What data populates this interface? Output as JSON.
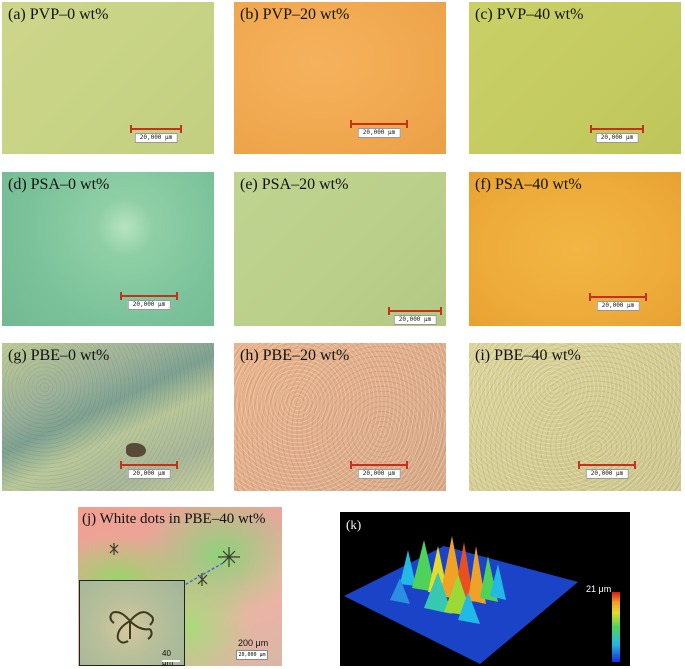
{
  "panels": [
    {
      "id": "a",
      "label": "(a) PVP–0 wt%",
      "scale": "20,000 μm"
    },
    {
      "id": "b",
      "label": "(b) PVP–20 wt%",
      "scale": "20,000 μm"
    },
    {
      "id": "c",
      "label": "(c) PVP–40 wt%",
      "scale": "20,000 μm"
    },
    {
      "id": "d",
      "label": "(d) PSA–0 wt%",
      "scale": "20,000 μm"
    },
    {
      "id": "e",
      "label": "(e) PSA–20 wt%",
      "scale": "20,000 μm"
    },
    {
      "id": "f",
      "label": "(f) PSA–40 wt%",
      "scale": "20,000 μm"
    },
    {
      "id": "g",
      "label": "(g) PBE–0 wt%",
      "scale": "20,000 μm"
    },
    {
      "id": "h",
      "label": "(h) PBE–20 wt%",
      "scale": "20,000 μm"
    },
    {
      "id": "i",
      "label": "(i) PBE–40 wt%",
      "scale": "20,000 μm"
    }
  ],
  "panel_j": {
    "label": "(j) White dots in PBE–40 wt%",
    "inset_scale": "40 μm",
    "main_scale": "200 μm",
    "main_scale_box": "20,000 μm"
  },
  "panel_k": {
    "label": "(k)",
    "colorbar_label": "21 μm"
  }
}
